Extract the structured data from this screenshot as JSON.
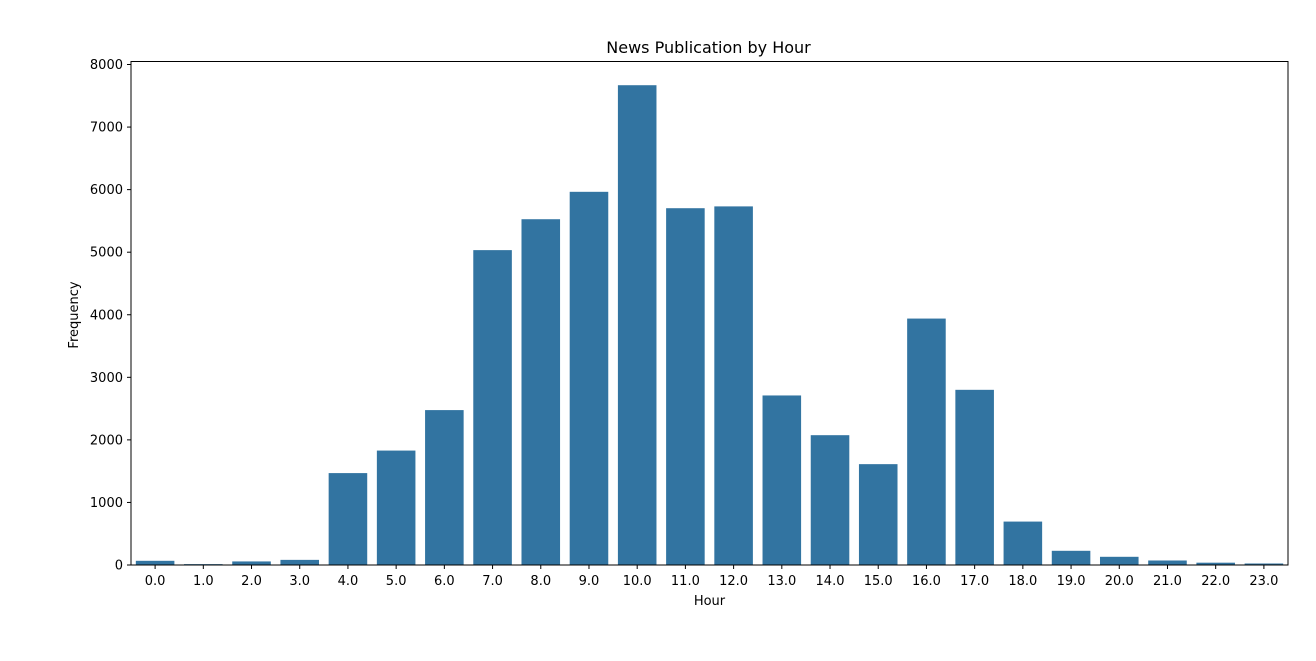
{
  "chart_data": {
    "type": "bar",
    "title": "News Publication by Hour",
    "xlabel": "Hour",
    "ylabel": "Frequency",
    "categories": [
      "0.0",
      "1.0",
      "2.0",
      "3.0",
      "4.0",
      "5.0",
      "6.0",
      "7.0",
      "8.0",
      "9.0",
      "10.0",
      "11.0",
      "12.0",
      "13.0",
      "14.0",
      "15.0",
      "16.0",
      "17.0",
      "18.0",
      "19.0",
      "20.0",
      "21.0",
      "22.0",
      "23.0"
    ],
    "values": [
      67,
      14,
      57,
      82,
      1469,
      1829,
      2476,
      5033,
      5527,
      5965,
      7669,
      5703,
      5732,
      2710,
      2075,
      1612,
      3939,
      2800,
      694,
      227,
      131,
      72,
      37,
      24
    ],
    "ylim": [
      0,
      8048
    ],
    "yticks": [
      0,
      1000,
      2000,
      3000,
      4000,
      5000,
      6000,
      7000,
      8000
    ],
    "bar_color": "#3274a1",
    "grid": false,
    "legend": null
  }
}
